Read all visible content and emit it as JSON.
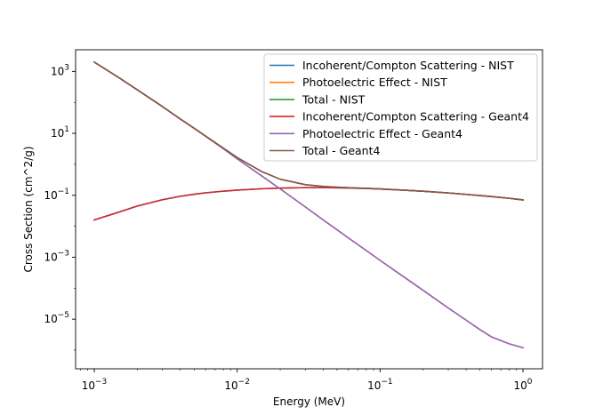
{
  "chart_data": {
    "type": "line",
    "title": "",
    "xlabel": "Energy (MeV)",
    "ylabel": "Cross Section (cm^2/g)",
    "xscale": "log",
    "yscale": "log",
    "xlim": [
      0.00074,
      1.37
    ],
    "ylim": [
      2.5e-07,
      5000
    ],
    "x_ticks": [
      {
        "value": 0.001,
        "base": "10",
        "exp": "−3"
      },
      {
        "value": 0.01,
        "base": "10",
        "exp": "−2"
      },
      {
        "value": 0.1,
        "base": "10",
        "exp": "−1"
      },
      {
        "value": 1,
        "base": "10",
        "exp": "0"
      }
    ],
    "y_ticks": [
      {
        "value": 1e-05,
        "base": "10",
        "exp": "−5"
      },
      {
        "value": 0.001,
        "base": "10",
        "exp": "−3"
      },
      {
        "value": 0.1,
        "base": "10",
        "exp": "−1"
      },
      {
        "value": 10,
        "base": "10",
        "exp": "1"
      },
      {
        "value": 1000,
        "base": "10",
        "exp": "3"
      }
    ],
    "grid": false,
    "legend_position": "top-right",
    "series": [
      {
        "name": "Incoherent/Compton Scattering - NIST",
        "color": "#1f77b4",
        "x": [
          0.001,
          0.0015,
          0.002,
          0.003,
          0.004,
          0.005,
          0.006,
          0.008,
          0.01,
          0.015,
          0.02,
          0.03,
          0.04,
          0.05,
          0.06,
          0.08,
          0.1,
          0.15,
          0.2,
          0.3,
          0.4,
          0.5,
          0.6,
          0.8,
          1.0
        ],
        "y": [
          0.016,
          0.029,
          0.045,
          0.072,
          0.093,
          0.108,
          0.12,
          0.136,
          0.147,
          0.163,
          0.171,
          0.177,
          0.177,
          0.175,
          0.172,
          0.166,
          0.16,
          0.146,
          0.135,
          0.119,
          0.107,
          0.098,
          0.091,
          0.08,
          0.071
        ]
      },
      {
        "name": "Photoelectric Effect - NIST",
        "color": "#ff7f0e",
        "x": [
          0.001,
          0.0015,
          0.002,
          0.003,
          0.004,
          0.005,
          0.006,
          0.008,
          0.01,
          0.015,
          0.02,
          0.03,
          0.04,
          0.05,
          0.06,
          0.08,
          0.1,
          0.15,
          0.2,
          0.3,
          0.4,
          0.5,
          0.6,
          0.8,
          1.0
        ],
        "y": [
          2000,
          610,
          255,
          73,
          29,
          14.5,
          8.1,
          3.2,
          1.5,
          0.41,
          0.16,
          0.042,
          0.016,
          0.0077,
          0.0042,
          0.00165,
          0.00079,
          0.000216,
          8.55e-05,
          2.29e-05,
          9.3e-06,
          4.6e-06,
          2.7e-06,
          1.6e-06,
          1.2e-06
        ]
      },
      {
        "name": "Total - NIST",
        "color": "#2ca02c",
        "x": [
          0.001,
          0.0015,
          0.002,
          0.003,
          0.004,
          0.005,
          0.006,
          0.008,
          0.01,
          0.015,
          0.02,
          0.03,
          0.04,
          0.05,
          0.06,
          0.08,
          0.1,
          0.15,
          0.2,
          0.3,
          0.4,
          0.5,
          0.6,
          0.8,
          1.0
        ],
        "y": [
          2000,
          610,
          255,
          73,
          29,
          14.6,
          8.2,
          3.34,
          1.65,
          0.57,
          0.33,
          0.22,
          0.193,
          0.183,
          0.176,
          0.168,
          0.161,
          0.146,
          0.135,
          0.119,
          0.107,
          0.098,
          0.091,
          0.08,
          0.071
        ]
      },
      {
        "name": "Incoherent/Compton Scattering - Geant4",
        "color": "#d62728",
        "x": [
          0.001,
          0.0015,
          0.002,
          0.003,
          0.004,
          0.005,
          0.006,
          0.008,
          0.01,
          0.015,
          0.02,
          0.03,
          0.04,
          0.05,
          0.06,
          0.08,
          0.1,
          0.15,
          0.2,
          0.3,
          0.4,
          0.5,
          0.6,
          0.8,
          1.0
        ],
        "y": [
          0.016,
          0.029,
          0.045,
          0.072,
          0.093,
          0.108,
          0.12,
          0.136,
          0.147,
          0.163,
          0.171,
          0.177,
          0.177,
          0.175,
          0.172,
          0.166,
          0.16,
          0.146,
          0.135,
          0.119,
          0.107,
          0.098,
          0.091,
          0.08,
          0.071
        ]
      },
      {
        "name": "Photoelectric Effect - Geant4",
        "color": "#9467bd",
        "x": [
          0.001,
          0.0015,
          0.002,
          0.003,
          0.004,
          0.005,
          0.006,
          0.008,
          0.01,
          0.015,
          0.02,
          0.03,
          0.04,
          0.05,
          0.06,
          0.08,
          0.1,
          0.15,
          0.2,
          0.3,
          0.4,
          0.5,
          0.6,
          0.8,
          1.0
        ],
        "y": [
          2000,
          610,
          255,
          73,
          29,
          14.5,
          8.1,
          3.2,
          1.5,
          0.41,
          0.16,
          0.042,
          0.016,
          0.0077,
          0.0042,
          0.00165,
          0.00079,
          0.000216,
          8.55e-05,
          2.29e-05,
          9.3e-06,
          4.6e-06,
          2.7e-06,
          1.6e-06,
          1.2e-06
        ]
      },
      {
        "name": "Total - Geant4",
        "color": "#8c564b",
        "x": [
          0.001,
          0.0015,
          0.002,
          0.003,
          0.004,
          0.005,
          0.006,
          0.008,
          0.01,
          0.015,
          0.02,
          0.03,
          0.04,
          0.05,
          0.06,
          0.08,
          0.1,
          0.15,
          0.2,
          0.3,
          0.4,
          0.5,
          0.6,
          0.8,
          1.0
        ],
        "y": [
          2000,
          610,
          255,
          73,
          29,
          14.6,
          8.2,
          3.34,
          1.65,
          0.57,
          0.33,
          0.22,
          0.193,
          0.183,
          0.176,
          0.168,
          0.161,
          0.146,
          0.135,
          0.119,
          0.107,
          0.098,
          0.091,
          0.08,
          0.071
        ]
      }
    ]
  }
}
